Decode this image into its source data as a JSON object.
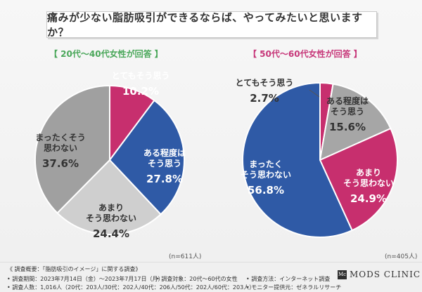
{
  "title": "痛みが少ない脂肪吸引ができるならば、やってみたいと思いますか？",
  "chart_data": [
    {
      "type": "pie",
      "title": "【 20代〜40代女性が回答 】",
      "n_label": "(n=611人)",
      "slices": [
        {
          "label_lines": [
            "とてもそう思う"
          ],
          "value": 10.2,
          "color": "#c72f6e",
          "text_color": "#ffffff"
        },
        {
          "label_lines": [
            "ある程度は",
            "そう思う"
          ],
          "value": 27.8,
          "color": "#2f5aa6",
          "text_color": "#ffffff"
        },
        {
          "label_lines": [
            "あまり",
            "そう思わない"
          ],
          "value": 24.4,
          "color": "#cfcfcf",
          "text_color": "#333333"
        },
        {
          "label_lines": [
            "まったくそう",
            "思わない"
          ],
          "value": 37.6,
          "color": "#a0a0a0",
          "text_color": "#333333"
        }
      ]
    },
    {
      "type": "pie",
      "title": "【 50代〜60代女性が回答 】",
      "n_label": "(n=405人)",
      "slices": [
        {
          "label_lines": [
            "とてもそう思う"
          ],
          "value": 2.7,
          "color": "#c72f6e",
          "text_color": "#333333"
        },
        {
          "label_lines": [
            "ある程度は",
            "そう思う"
          ],
          "value": 15.6,
          "color": "#a6a6a6",
          "text_color": "#333333"
        },
        {
          "label_lines": [
            "あまり",
            "そう思わない"
          ],
          "value": 24.9,
          "color": "#c72f6e",
          "text_color": "#ffffff"
        },
        {
          "label_lines": [
            "まったく",
            "そう思わない"
          ],
          "value": 56.8,
          "color": "#2f5aa6",
          "text_color": "#ffffff"
        }
      ]
    }
  ],
  "footnote": {
    "heading": "《 調査概要：「脂肪吸引のイメージ」に関する調査》",
    "period": "• 調査期間：2023年7月14日（金）〜2023年7月17日（月）",
    "count": "• 調査人数：1,016人（20代：203人/30代：202人/40代：206人/50代：202人/60代：203人）",
    "target": "• 調査対象：20代〜60代の女性",
    "method": "• 調査方法：インターネット調査",
    "provider": "• モニター提供元：ゼネラルリサーチ"
  },
  "logo": {
    "mark": "Mc",
    "text": "MODS CLINIC"
  }
}
